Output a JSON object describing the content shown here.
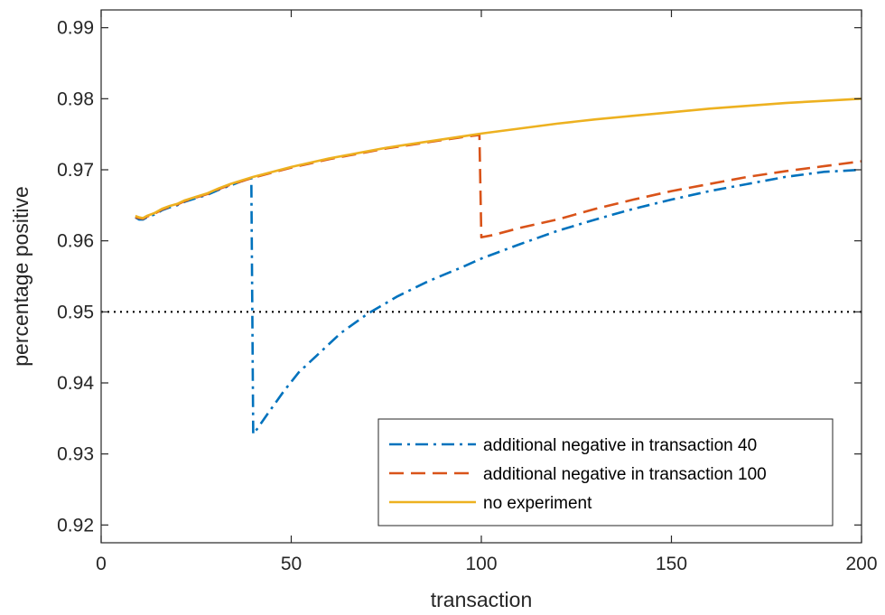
{
  "chart_data": {
    "type": "line",
    "title": "",
    "xlabel": "transaction",
    "ylabel": "percentage positive",
    "xlim": [
      0,
      200
    ],
    "ylim": [
      0.9175,
      0.9925
    ],
    "xticks": [
      0,
      50,
      100,
      150,
      200
    ],
    "xtick_labels": [
      "0",
      "50",
      "100",
      "150",
      "200"
    ],
    "yticks": [
      0.92,
      0.93,
      0.94,
      0.95,
      0.96,
      0.97,
      0.98,
      0.99
    ],
    "ytick_labels": [
      "0.92",
      "0.93",
      "0.94",
      "0.95",
      "0.96",
      "0.97",
      "0.98",
      "0.99"
    ],
    "grid": false,
    "legend_position": "bottom-right",
    "reference_line": {
      "y": 0.95,
      "style": "dotted",
      "color": "#000000"
    },
    "series": [
      {
        "name": "additional negative in transaction 40",
        "color": "#0072BD",
        "style": "dash-dot",
        "x": [
          9,
          10,
          11,
          12,
          14,
          16,
          18,
          20,
          22,
          25,
          28,
          31,
          34,
          37,
          39.5,
          40,
          41,
          44,
          48,
          52,
          57,
          63,
          70,
          78,
          86,
          95,
          100,
          110,
          120,
          130,
          140,
          150,
          160,
          170,
          180,
          190,
          200
        ],
        "y": [
          0.9633,
          0.963,
          0.963,
          0.9633,
          0.9637,
          0.9643,
          0.9647,
          0.965,
          0.9655,
          0.966,
          0.9665,
          0.9672,
          0.9678,
          0.9684,
          0.9688,
          0.9328,
          0.9335,
          0.9358,
          0.9388,
          0.9415,
          0.944,
          0.947,
          0.9497,
          0.9522,
          0.9543,
          0.9563,
          0.9575,
          0.9595,
          0.9614,
          0.963,
          0.9645,
          0.9658,
          0.967,
          0.968,
          0.969,
          0.9697,
          0.97
        ]
      },
      {
        "name": "additional negative in transaction 100",
        "color": "#D95319",
        "style": "dashed",
        "x": [
          9,
          10,
          11,
          12,
          14,
          16,
          18,
          20,
          22,
          25,
          28,
          31,
          34,
          37,
          40,
          45,
          50,
          55,
          60,
          65,
          70,
          75,
          80,
          85,
          90,
          95,
          99.5,
          100,
          103,
          110,
          120,
          130,
          140,
          150,
          160,
          170,
          180,
          190,
          200
        ],
        "y": [
          0.9633,
          0.9632,
          0.9631,
          0.9634,
          0.9638,
          0.9644,
          0.9648,
          0.9651,
          0.9656,
          0.9661,
          0.9666,
          0.9673,
          0.9679,
          0.9684,
          0.9689,
          0.9696,
          0.9703,
          0.9709,
          0.9715,
          0.972,
          0.9725,
          0.973,
          0.9734,
          0.9738,
          0.9742,
          0.9746,
          0.9749,
          0.9605,
          0.9608,
          0.9618,
          0.963,
          0.9645,
          0.9658,
          0.967,
          0.968,
          0.969,
          0.9698,
          0.9705,
          0.9712
        ]
      },
      {
        "name": "no experiment",
        "color": "#EDB120",
        "style": "solid",
        "x": [
          9,
          10,
          11,
          12,
          14,
          16,
          18,
          20,
          22,
          25,
          28,
          31,
          34,
          37,
          40,
          45,
          50,
          55,
          60,
          65,
          70,
          75,
          80,
          85,
          90,
          95,
          100,
          110,
          120,
          130,
          140,
          150,
          160,
          170,
          180,
          190,
          200
        ],
        "y": [
          0.9635,
          0.9633,
          0.9632,
          0.9635,
          0.9639,
          0.9645,
          0.9649,
          0.9652,
          0.9657,
          0.9662,
          0.9667,
          0.9674,
          0.968,
          0.9685,
          0.969,
          0.9697,
          0.9704,
          0.971,
          0.9716,
          0.9721,
          0.9726,
          0.9731,
          0.9735,
          0.9739,
          0.9743,
          0.9747,
          0.9751,
          0.9758,
          0.9765,
          0.9771,
          0.9776,
          0.9781,
          0.9786,
          0.979,
          0.9794,
          0.9797,
          0.98
        ]
      }
    ]
  }
}
